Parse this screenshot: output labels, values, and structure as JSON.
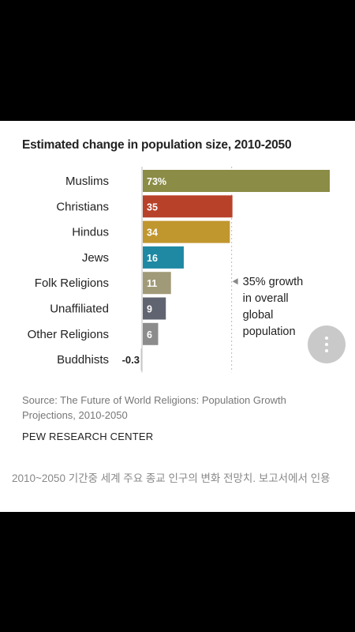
{
  "chart_data": {
    "type": "bar",
    "orientation": "horizontal",
    "title": "Estimated change in population size, 2010-2050",
    "categories": [
      "Muslims",
      "Christians",
      "Hindus",
      "Jews",
      "Folk Religions",
      "Unaffiliated",
      "Other Religions",
      "Buddhists"
    ],
    "values": [
      73,
      35,
      34,
      16,
      11,
      9,
      6,
      -0.3
    ],
    "value_labels": [
      "73%",
      "35",
      "34",
      "16",
      "11",
      "9",
      "6",
      "-0.3"
    ],
    "colors": [
      "#8b8c46",
      "#b8412a",
      "#c0962e",
      "#1f89a3",
      "#a09a78",
      "#5f6470",
      "#8c8c8c",
      "#c7c7c7"
    ],
    "reference_line": {
      "value": 35,
      "label_lines": [
        "35% growth",
        "in overall",
        "global",
        "population"
      ]
    },
    "grid": false
  },
  "source": "Source: The Future of World Religions: Population Growth Projections, 2010-2050",
  "organization": "PEW RESEARCH CENTER",
  "caption": "2010~2050 기간중 세계 주요 종교 인구의 변화 전망치. 보고서에서 인용",
  "more_button": {
    "icon": "more-vert-icon"
  }
}
